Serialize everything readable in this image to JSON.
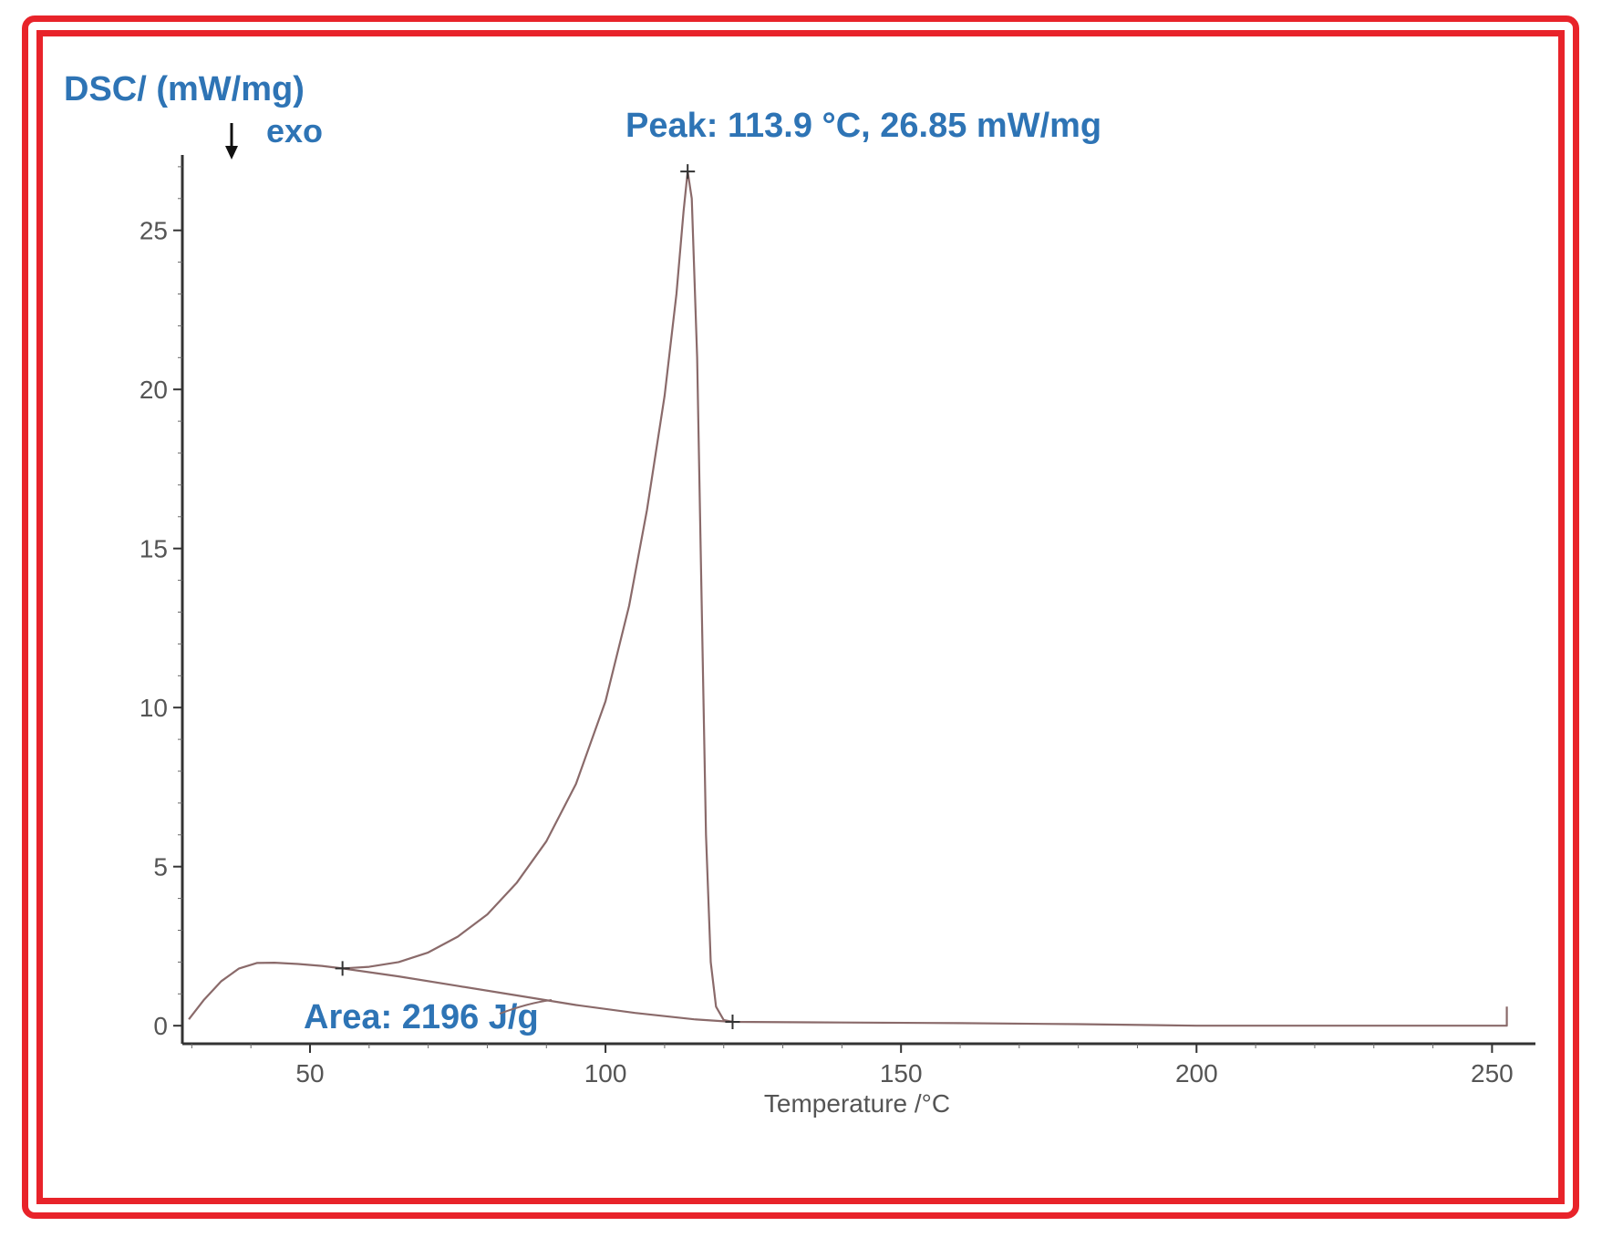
{
  "colors": {
    "frame": "#e8232a",
    "annotation": "#2e74b5",
    "curve": "#8a6a6a",
    "axis": "#333333"
  },
  "chart_data": {
    "type": "line",
    "ylabel": "DSC/ (mW/mg)",
    "exo_label": "exo",
    "xlabel": "Temperature /°C",
    "xlim": [
      28,
      254
    ],
    "ylim": [
      -0.5,
      27.5
    ],
    "x_ticks": [
      50,
      100,
      150,
      200,
      250
    ],
    "y_ticks": [
      0,
      5,
      10,
      15,
      20,
      25
    ],
    "peak_label": "Peak: 113.9 °C, 26.85 mW/mg",
    "peak": {
      "x": 113.9,
      "y": 26.85
    },
    "area_label": "Area: 2196 J/g",
    "area_start": {
      "x": 55.5,
      "y": 1.8
    },
    "area_end": {
      "x": 121.5,
      "y": 0.12
    },
    "series": [
      {
        "values": [
          [
            29.5,
            0.2
          ],
          [
            32,
            0.8
          ],
          [
            35,
            1.4
          ],
          [
            38,
            1.8
          ],
          [
            41,
            1.97
          ],
          [
            44,
            1.98
          ],
          [
            48,
            1.94
          ],
          [
            52,
            1.88
          ],
          [
            55.5,
            1.8
          ],
          [
            60,
            1.85
          ],
          [
            65,
            2.0
          ],
          [
            70,
            2.3
          ],
          [
            75,
            2.8
          ],
          [
            80,
            3.5
          ],
          [
            85,
            4.5
          ],
          [
            90,
            5.8
          ],
          [
            95,
            7.6
          ],
          [
            100,
            10.2
          ],
          [
            104,
            13.2
          ],
          [
            107,
            16.2
          ],
          [
            110,
            19.8
          ],
          [
            112,
            23.0
          ],
          [
            113.2,
            25.6
          ],
          [
            113.9,
            26.85
          ],
          [
            114.6,
            26.0
          ],
          [
            115.5,
            21.0
          ],
          [
            116.2,
            14.0
          ],
          [
            117,
            6.0
          ],
          [
            117.8,
            2.0
          ],
          [
            118.7,
            0.6
          ],
          [
            120,
            0.18
          ],
          [
            121.5,
            0.12
          ],
          [
            140,
            0.1
          ],
          [
            160,
            0.08
          ],
          [
            180,
            0.05
          ],
          [
            200,
            0.0
          ],
          [
            225,
            0.0
          ],
          [
            252.5,
            0.0
          ],
          [
            252.5,
            0.6
          ]
        ]
      },
      {
        "values": [
          [
            55.5,
            1.8
          ],
          [
            65,
            1.55
          ],
          [
            75,
            1.25
          ],
          [
            85,
            0.95
          ],
          [
            95,
            0.65
          ],
          [
            105,
            0.4
          ],
          [
            115,
            0.2
          ],
          [
            121.5,
            0.12
          ]
        ]
      }
    ]
  }
}
